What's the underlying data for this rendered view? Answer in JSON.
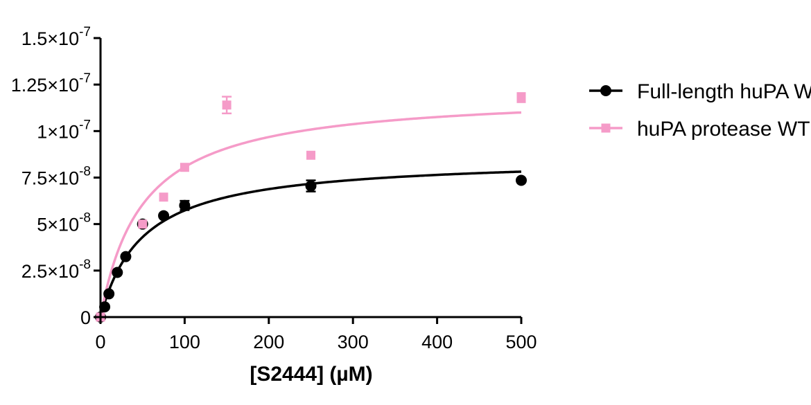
{
  "chart_data": {
    "type": "scatter",
    "title": "",
    "xlabel": "[S2444] (µM)",
    "ylabel": "",
    "xlim": [
      0,
      500
    ],
    "ylim": [
      0,
      1.5e-07
    ],
    "xticks": [
      0,
      100,
      200,
      300,
      400,
      500
    ],
    "xtick_labels": [
      "0",
      "100",
      "200",
      "300",
      "400",
      "500"
    ],
    "yticks": [
      0,
      2.5e-08,
      5e-08,
      7.5e-08,
      1e-07,
      1.25e-07,
      1.5e-07
    ],
    "ytick_labels": [
      {
        "base": "0",
        "exp": ""
      },
      {
        "base": "2.5×10",
        "exp": "-8"
      },
      {
        "base": "5×10",
        "exp": "-8"
      },
      {
        "base": "7.5×10",
        "exp": "-8"
      },
      {
        "base": "1×10",
        "exp": "-7"
      },
      {
        "base": "1.25×10",
        "exp": "-7"
      },
      {
        "base": "1.5×10",
        "exp": "-7"
      }
    ],
    "grid": false,
    "legend_position": "right",
    "series": [
      {
        "name": "Full-length huPA WT",
        "marker": "circle",
        "color": "#000000",
        "x": [
          0,
          5,
          10,
          20,
          30,
          50,
          75,
          100,
          250,
          500
        ],
        "y": [
          0,
          5.5e-09,
          1.25e-08,
          2.4e-08,
          3.25e-08,
          5e-08,
          5.45e-08,
          6e-08,
          7.05e-08,
          7.35e-08
        ],
        "yerr": [
          0,
          0,
          0,
          0,
          0,
          0,
          0,
          2.5e-09,
          3e-09,
          0
        ],
        "fit": {
          "model": "Michaelis-Menten",
          "vmax": 8.6e-08,
          "km": 50
        }
      },
      {
        "name": "huPA protease WT",
        "marker": "square",
        "color": "#f59bc8",
        "x": [
          0,
          50,
          75,
          100,
          150,
          250,
          500,
          500
        ],
        "y": [
          0,
          5e-08,
          6.45e-08,
          8.05e-08,
          1.14e-07,
          8.7e-08,
          1.185e-07,
          1.175e-07
        ],
        "yerr": [
          0,
          0,
          0,
          0,
          4.5e-09,
          0,
          0,
          0
        ],
        "fit": {
          "model": "Michaelis-Menten",
          "vmax": 1.21e-07,
          "km": 50
        }
      }
    ]
  }
}
